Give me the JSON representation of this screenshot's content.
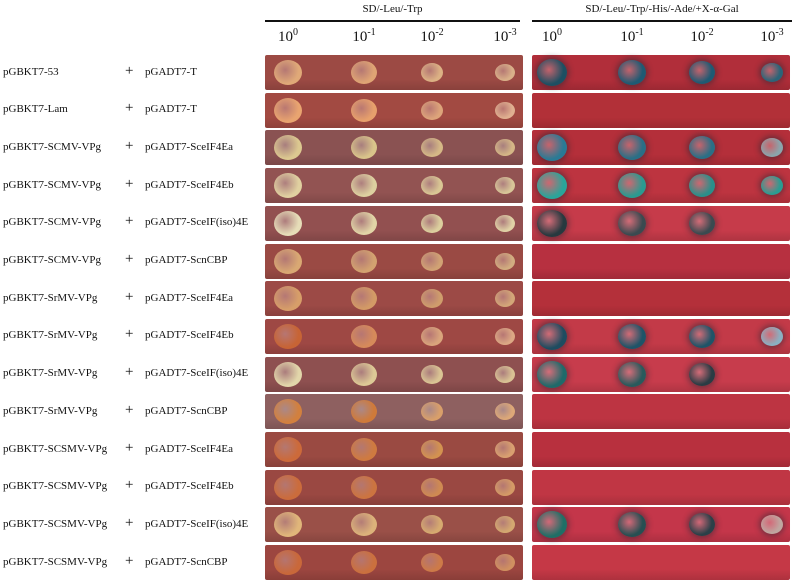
{
  "headers": {
    "left_medium": "SD/-Leu/-Trp",
    "right_medium": "SD/-Leu/-Trp/-His/-Ade/+X-α-Gal"
  },
  "dilutions": [
    {
      "base": "10",
      "exp": "0"
    },
    {
      "base": "10",
      "exp": "-1"
    },
    {
      "base": "10",
      "exp": "-2"
    },
    {
      "base": "10",
      "exp": "-3"
    }
  ],
  "plus_sign": "+",
  "rows": [
    {
      "bait": "pGBKT7-53",
      "prey": "pGADT7-T",
      "left_bg": "#9c4a44",
      "right_bg": "#b12e3a",
      "left": [
        "#e0a978",
        "#dfa474",
        "#dcb184",
        "#d9b089"
      ],
      "right": [
        "#1d4f62",
        "#1e5a73",
        "#1e5a73",
        "#2a6478"
      ]
    },
    {
      "bait": "pGBKT7-Lam",
      "prey": "pGADT7-T",
      "left_bg": "#a24a42",
      "right_bg": "#b23038",
      "left": [
        "#e9a470",
        "#e7a06c",
        "#dda47a",
        "#e0b090"
      ],
      "right": [
        null,
        null,
        null,
        null
      ]
    },
    {
      "bait": "pGBKT7-SCMV-VPg",
      "prey": "pGADT7-SceIF4Ea",
      "left_bg": "#8a5252",
      "right_bg": "#b42f3a",
      "left": [
        "#dcc890",
        "#d9c48a",
        "#d5b886",
        "#d4b686"
      ],
      "right": [
        "#2a7a95",
        "#2a6f86",
        "#2a6f86",
        "#8aa5ac"
      ]
    },
    {
      "bait": "pGBKT7-SCMV-VPg",
      "prey": "pGADT7-SceIF4Eb",
      "left_bg": "#925352",
      "right_bg": "#bd3440",
      "left": [
        "#e0d0a0",
        "#ddd0a0",
        "#d9c694",
        "#d8c698"
      ],
      "right": [
        "#2aa59a",
        "#2a9a90",
        "#2a8f8a",
        "#2a9c92"
      ]
    },
    {
      "bait": "pGBKT7-SCMV-VPg",
      "prey": "pGADT7-SceIF(iso)4E",
      "left_bg": "#925050",
      "right_bg": "#c63b4a",
      "left": [
        "#e6ddb8",
        "#e1d4a6",
        "#dccf9e",
        "#e0d2a6"
      ],
      "right": [
        "#27393f",
        "#3a4a50",
        "#3a4a50",
        null
      ]
    },
    {
      "bait": "pGBKT7-SCMV-VPg",
      "prey": "pGADT7-ScnCBP",
      "left_bg": "#9a4a44",
      "right_bg": "#b73040",
      "left": [
        "#d9a873",
        "#d3a270",
        "#d1a274",
        "#d2ad80"
      ],
      "right": [
        null,
        null,
        null,
        null
      ]
    },
    {
      "bait": "pGBKT7-SrMV-VPg",
      "prey": "pGADT7-SceIF4Ea",
      "left_bg": "#9c4a46",
      "right_bg": "#b4303a",
      "left": [
        "#d79e69",
        "#d39a66",
        "#cf9d6c",
        "#d3a678"
      ],
      "right": [
        null,
        null,
        null,
        null
      ]
    },
    {
      "bait": "pGBKT7-SrMV-VPg",
      "prey": "pGADT7-SceIF4Eb",
      "left_bg": "#9e4844",
      "right_bg": "#c33a48",
      "left": [
        "#c76435",
        "#d68a5a",
        "#d9a47c",
        "#dca884"
      ],
      "right": [
        "#1e4c60",
        "#1e5468",
        "#1e5468",
        "#8ab0c2"
      ]
    },
    {
      "bait": "pGBKT7-SrMV-VPg",
      "prey": "pGADT7-SceIF(iso)4E",
      "left_bg": "#8e5050",
      "right_bg": "#c73c4c",
      "left": [
        "#e2d6aa",
        "#ddc996",
        "#dac494",
        "#d9c294"
      ],
      "right": [
        "#1e6a6a",
        "#285a5c",
        "#2a3c44",
        null
      ]
    },
    {
      "bait": "pGBKT7-SrMV-VPg",
      "prey": "pGADT7-ScnCBP",
      "left_bg": "#8e6060",
      "right_bg": "#bd3442",
      "left": [
        "#d2803e",
        "#cf7a3a",
        "#d99f6a",
        "#dda878"
      ],
      "right": [
        null,
        null,
        null,
        null
      ]
    },
    {
      "bait": "pGBKT7-SCSMV-VPg",
      "prey": "pGADT7-SceIF4Ea",
      "left_bg": "#9a4a42",
      "right_bg": "#b8303e",
      "left": [
        "#cc6a3a",
        "#cf7a40",
        "#d39250",
        "#d9a070"
      ],
      "right": [
        null,
        null,
        null,
        null
      ]
    },
    {
      "bait": "pGBKT7-SCSMV-VPg",
      "prey": "pGADT7-SceIF4Eb",
      "left_bg": "#9a4842",
      "right_bg": "#c03644",
      "left": [
        "#cb6c3c",
        "#cc7440",
        "#cf8a52",
        "#d49a66"
      ],
      "right": [
        null,
        null,
        null,
        null
      ]
    },
    {
      "bait": "pGBKT7-SCSMV-VPg",
      "prey": "pGADT7-SceIF(iso)4E",
      "left_bg": "#9a5048",
      "right_bg": "#c4364a",
      "left": [
        "#e0b67a",
        "#dcb27a",
        "#d6aa70",
        "#d4a870"
      ],
      "right": [
        "#1f6f66",
        "#264f52",
        "#2a4048",
        "#bfa6a0"
      ]
    },
    {
      "bait": "pGBKT7-SCSMV-VPg",
      "prey": "pGADT7-ScnCBP",
      "left_bg": "#9c4640",
      "right_bg": "#c53846",
      "left": [
        "#c9683a",
        "#cb703e",
        "#cd7a48",
        "#d09060"
      ],
      "right": [
        null,
        null,
        null,
        null
      ]
    }
  ]
}
